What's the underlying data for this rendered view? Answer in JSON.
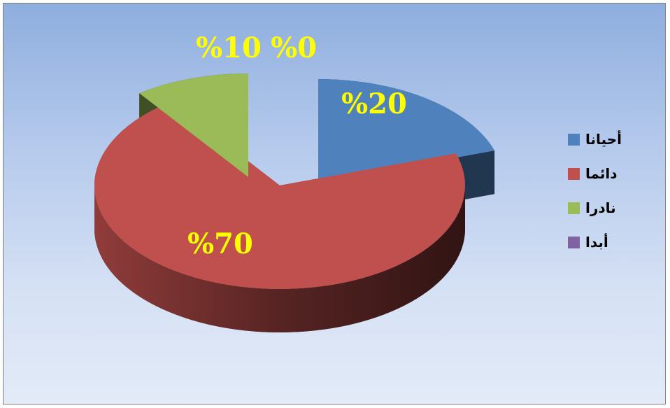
{
  "chart_data": {
    "type": "pie",
    "style": "3d-exploded",
    "categories": [
      "أحيانا",
      "دائما",
      "نادرا",
      "أبدا"
    ],
    "values": [
      20,
      70,
      10,
      0
    ],
    "data_labels": [
      "%20",
      "%70",
      "%10",
      "%0"
    ],
    "colors": [
      "#4f81bd",
      "#c0504d",
      "#9bbb59",
      "#8064a2"
    ],
    "legend_position": "right",
    "label_color": "#ffff00",
    "background": "blue-gradient"
  }
}
